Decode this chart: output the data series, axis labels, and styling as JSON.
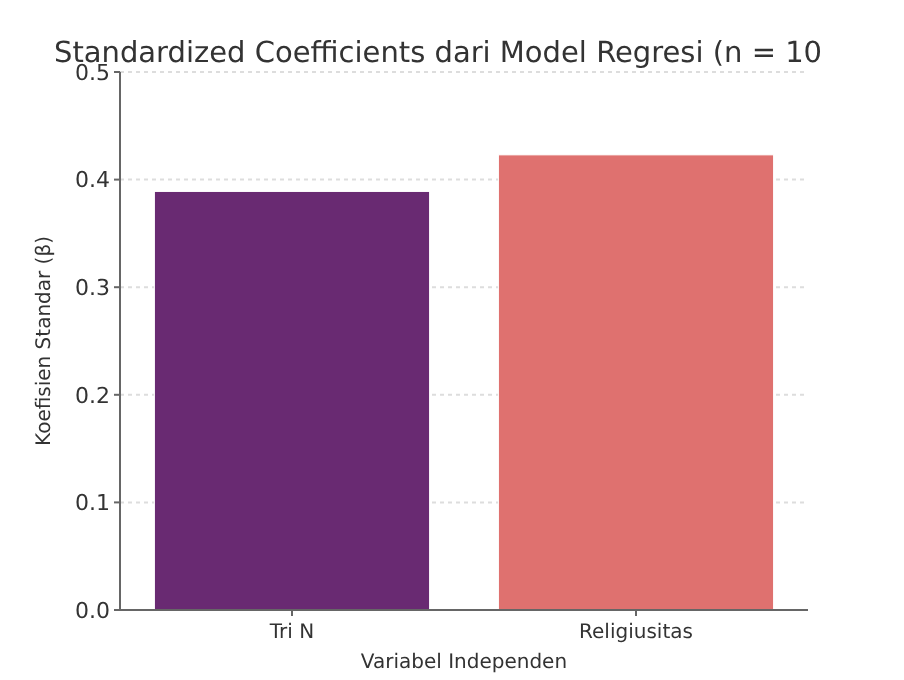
{
  "chart_data": {
    "type": "bar",
    "title": "Standardized Coefficients dari Model Regresi (n = 10",
    "xlabel": "Variabel Independen",
    "ylabel": "Koefisien Standar (β)",
    "categories": [
      "Tri N",
      "Religiusitas"
    ],
    "values": [
      0.389,
      0.423
    ],
    "colors": [
      "#692a72",
      "#df716f"
    ],
    "ylim": [
      0,
      0.5
    ],
    "yticks": [
      {
        "value": 0,
        "label": "0.0"
      },
      0.1,
      0.2,
      0.3,
      0.4,
      0.5
    ],
    "grid": "y"
  }
}
